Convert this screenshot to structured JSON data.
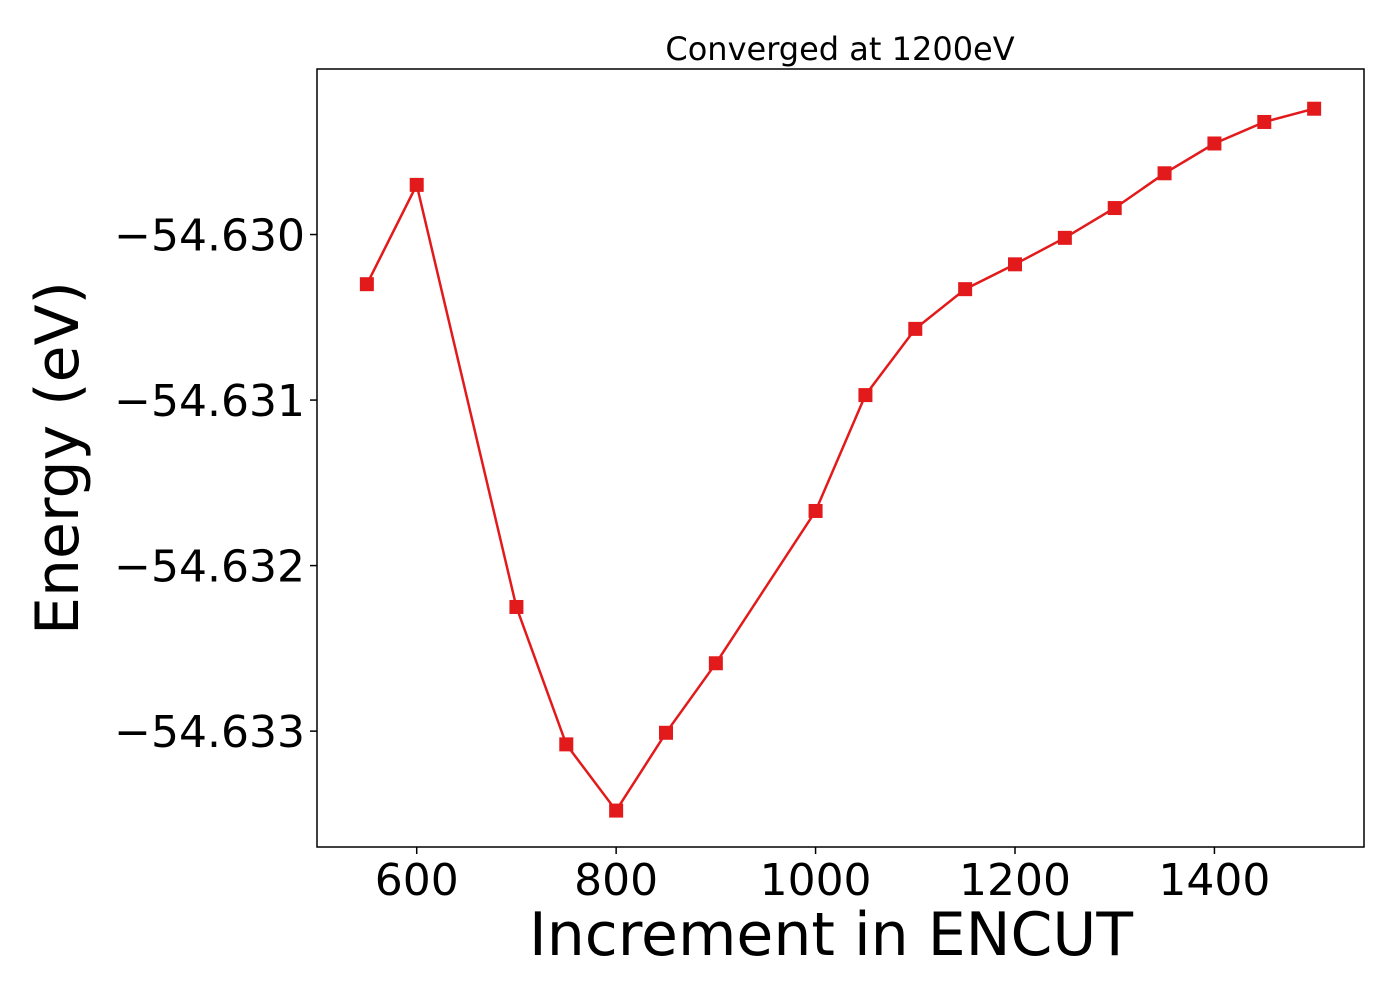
{
  "chart_data": {
    "type": "line",
    "title": "Converged at 1200eV",
    "xlabel": "Increment in ENCUT",
    "ylabel": "Energy (eV)",
    "xlim": [
      500,
      1550
    ],
    "ylim": [
      -54.6337,
      -54.629
    ],
    "x_ticks": [
      600,
      800,
      1000,
      1200,
      1400
    ],
    "x_tick_labels": [
      "600",
      "800",
      "1000",
      "1200",
      "1400"
    ],
    "y_ticks": [
      -54.63,
      -54.631,
      -54.632,
      -54.633
    ],
    "y_tick_labels": [
      "−54.630",
      "−54.631",
      "−54.632",
      "−54.633"
    ],
    "grid": false,
    "colors": {
      "series": "#e31a1c",
      "axes": "#000000"
    },
    "series": [
      {
        "marker": "square",
        "x": [
          550,
          600,
          700,
          750,
          800,
          850,
          900,
          1000,
          1050,
          1100,
          1150,
          1200,
          1250,
          1300,
          1350,
          1400,
          1450,
          1500
        ],
        "y": [
          -54.6303,
          -54.6297,
          -54.63225,
          -54.63308,
          -54.63348,
          -54.63301,
          -54.63259,
          -54.63167,
          -54.63097,
          -54.63057,
          -54.63033,
          -54.63018,
          -54.63002,
          -54.62984,
          -54.62963,
          -54.62945,
          -54.62932,
          -54.62924
        ]
      }
    ]
  }
}
